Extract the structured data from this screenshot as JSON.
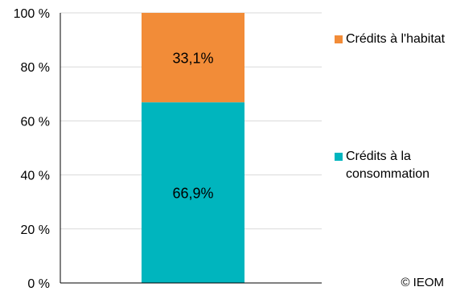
{
  "chart_data": {
    "type": "bar",
    "stacked": true,
    "percent": true,
    "categories": [
      ""
    ],
    "series": [
      {
        "name": "Crédits à la consommation",
        "values": [
          66.9
        ],
        "label": "66,9%",
        "color": "#00b5be"
      },
      {
        "name": "Crédits à l'habitat",
        "values": [
          33.1
        ],
        "label": "33,1%",
        "color": "#f28c38"
      }
    ],
    "y_ticks": [
      "0 %",
      "20 %",
      "40 %",
      "60 %",
      "80 %",
      "100 %"
    ],
    "ylim": [
      0,
      100
    ],
    "grid": true,
    "legend_position": "right"
  },
  "legend": [
    {
      "text": "Crédits à l'habitat",
      "color": "#f28c38"
    },
    {
      "text": "Crédits à la consommation",
      "color": "#00b5be"
    }
  ],
  "credit": "© IEOM"
}
